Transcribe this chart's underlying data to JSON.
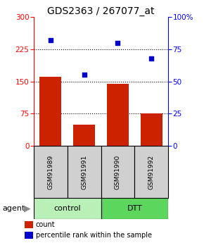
{
  "title": "GDS2363 / 267077_at",
  "samples": [
    "GSM91989",
    "GSM91991",
    "GSM91990",
    "GSM91992"
  ],
  "bar_values": [
    160,
    50,
    145,
    75
  ],
  "percentile_values": [
    82,
    55,
    80,
    68
  ],
  "group_labels": [
    "control",
    "DTT"
  ],
  "group_colors": [
    "#b8f0b8",
    "#5cd65c"
  ],
  "bar_color": "#cc2200",
  "scatter_color": "#0000cc",
  "left_ylim": [
    0,
    300
  ],
  "right_ylim": [
    0,
    100
  ],
  "left_yticks": [
    0,
    75,
    150,
    225,
    300
  ],
  "right_yticks": [
    0,
    25,
    50,
    75,
    100
  ],
  "hlines": [
    75,
    150,
    225
  ],
  "bar_width": 0.65,
  "agent_label": "agent",
  "legend_bar_label": "count",
  "legend_scatter_label": "percentile rank within the sample",
  "bg_color": "#ffffff",
  "sample_box_color": "#d0d0d0",
  "title_fontsize": 10,
  "tick_fontsize": 7.5
}
